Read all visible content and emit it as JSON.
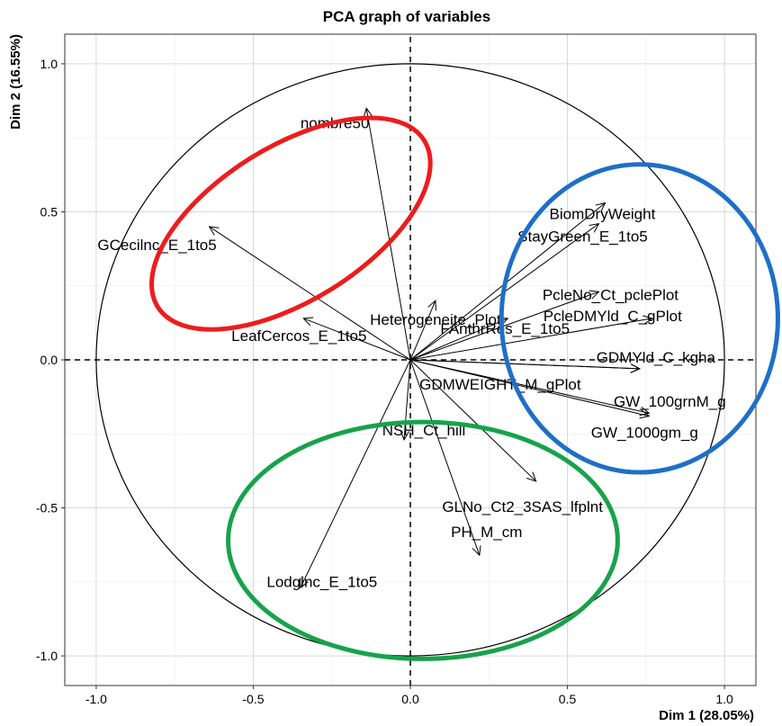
{
  "chart_data": {
    "type": "scatter",
    "title": "PCA graph of variables",
    "xlabel": "Dim 1 (28.05%)",
    "ylabel": "Dim 2 (16.55%)",
    "xlim": [
      -1.1,
      1.1
    ],
    "ylim": [
      -1.1,
      1.1
    ],
    "x_ticks": [
      -1.0,
      -0.5,
      0.0,
      0.5,
      1.0
    ],
    "y_ticks": [
      -1.0,
      -0.5,
      0.0,
      0.5,
      1.0
    ],
    "x_tick_labels": [
      "-1.0",
      "-0.5",
      "0.0",
      "0.5",
      "1.0"
    ],
    "y_tick_labels": [
      "-1.0",
      "-0.5",
      "0.0",
      "0.5",
      "1.0"
    ],
    "grid": true,
    "correlation_circle": true,
    "variables": [
      {
        "name": "nombre50",
        "x": -0.14,
        "y": 0.85
      },
      {
        "name": "GCecilnc_E_1to5",
        "x": -0.64,
        "y": 0.45
      },
      {
        "name": "LeafCercos_E_1to5",
        "x": -0.34,
        "y": 0.14
      },
      {
        "name": "Heterogeneite_Plot",
        "x": 0.08,
        "y": 0.2
      },
      {
        "name": "BiomDryWeight",
        "x": 0.62,
        "y": 0.53
      },
      {
        "name": "StayGreen_E_1to5",
        "x": 0.6,
        "y": 0.46
      },
      {
        "name": "PcleNo_Ct_pclePlot",
        "x": 0.6,
        "y": 0.23
      },
      {
        "name": "PcleDMYld_C_gPlot",
        "x": 0.77,
        "y": 0.14
      },
      {
        "name": "FAnthrRes_E_1to5",
        "x": 0.31,
        "y": 0.14
      },
      {
        "name": "GDMYld_C_kgha",
        "x": 0.73,
        "y": -0.03
      },
      {
        "name": "GDMWEIGHT_M_gPlot",
        "x": 0.73,
        "y": -0.03
      },
      {
        "name": "GW_100grnM_g",
        "x": 0.76,
        "y": -0.18
      },
      {
        "name": "GW_1000gm_g",
        "x": 0.76,
        "y": -0.19
      },
      {
        "name": "NSH_Ct_hill",
        "x": -0.02,
        "y": -0.27
      },
      {
        "name": "GLNo_Ct2_3SAS_lfplnt",
        "x": 0.4,
        "y": -0.41
      },
      {
        "name": "PH_M_cm",
        "x": 0.22,
        "y": -0.66
      },
      {
        "name": "Lodglnc_E_1to5",
        "x": -0.35,
        "y": -0.77
      }
    ],
    "annotations": [
      {
        "shape": "ellipse",
        "color": "#ee1c1c",
        "cx": -0.38,
        "cy": 0.46,
        "rx": 0.5,
        "ry": 0.26,
        "angle_deg": 32
      },
      {
        "shape": "ellipse",
        "color": "#1e6fc8",
        "cx": 0.73,
        "cy": 0.14,
        "rx": 0.44,
        "ry": 0.52,
        "angle_deg": 0
      },
      {
        "shape": "ellipse",
        "color": "#16a34a",
        "cx": 0.04,
        "cy": -0.61,
        "rx": 0.62,
        "ry": 0.4,
        "angle_deg": 0
      }
    ]
  }
}
